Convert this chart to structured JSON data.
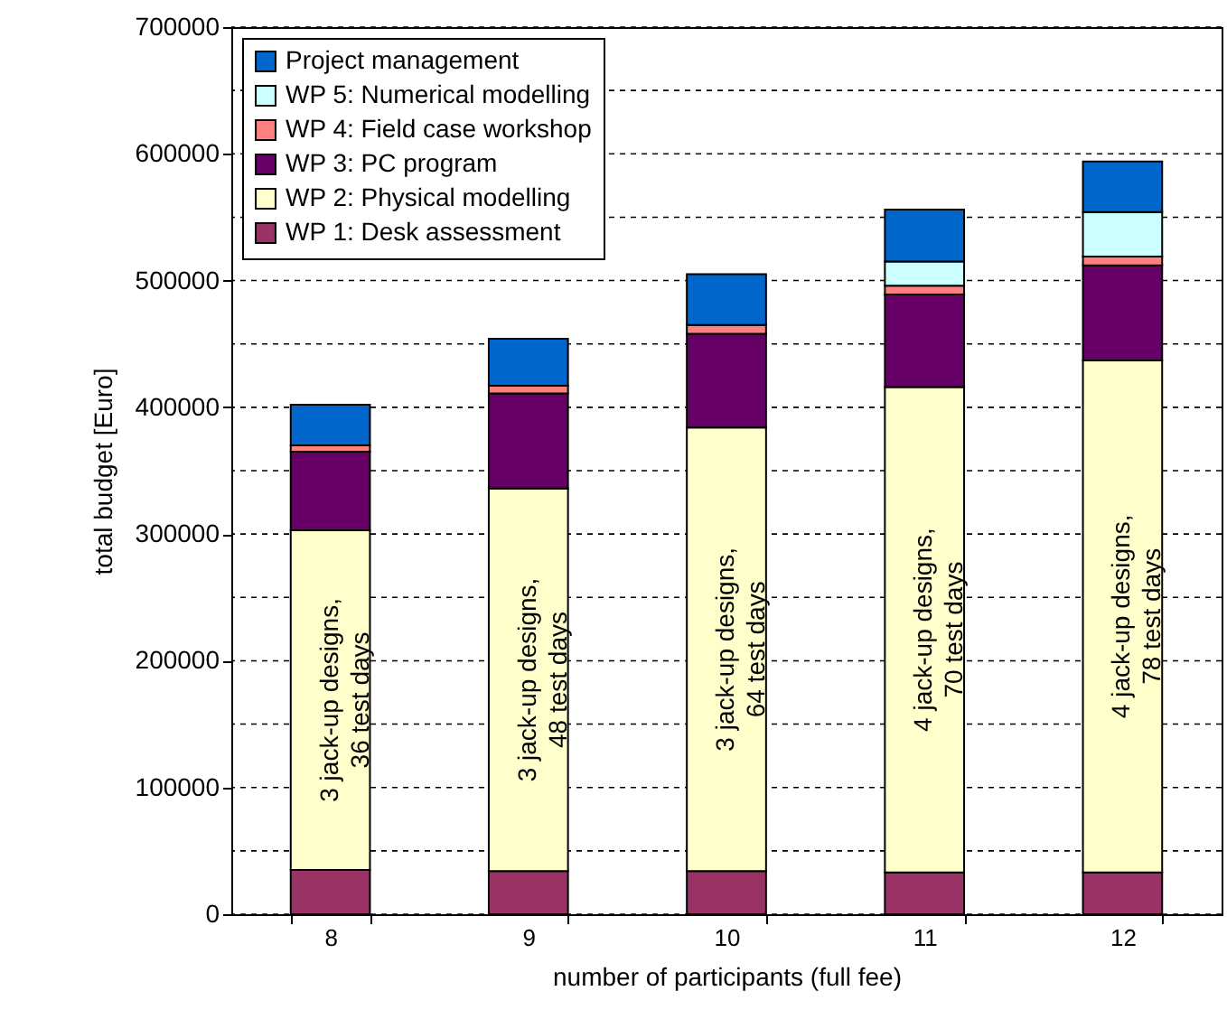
{
  "chart_data": {
    "type": "bar",
    "stacked": true,
    "xlabel": "number of participants (full fee)",
    "ylabel": "total budget [Euro]",
    "categories": [
      "8",
      "9",
      "10",
      "11",
      "12"
    ],
    "series": [
      {
        "name": "WP 1: Desk assessment",
        "color": "#993366",
        "values": [
          35000,
          34000,
          34000,
          33000,
          33000
        ]
      },
      {
        "name": "WP 2: Physical modelling",
        "color": "#ffffcc",
        "values": [
          268000,
          302000,
          350000,
          383000,
          404000
        ]
      },
      {
        "name": "WP 3: PC program",
        "color": "#660066",
        "values": [
          62000,
          75000,
          74000,
          73000,
          75000
        ]
      },
      {
        "name": "WP 4: Field case workshop",
        "color": "#ff8080",
        "values": [
          5000,
          6000,
          7000,
          7000,
          7000
        ]
      },
      {
        "name": "WP 5: Numerical modelling",
        "color": "#ccffff",
        "values": [
          null,
          null,
          null,
          19000,
          35000
        ]
      },
      {
        "name": "Project management",
        "color": "#0066cc",
        "values": [
          32000,
          37000,
          40000,
          41000,
          40000
        ]
      }
    ],
    "ylim": [
      0,
      700000
    ],
    "yticks": [
      0,
      {
        "value": 50000,
        "label": null
      },
      100000,
      {
        "value": 150000,
        "label": null
      },
      200000,
      {
        "value": 250000,
        "label": null
      },
      300000,
      {
        "value": 350000,
        "label": null
      },
      400000,
      {
        "value": 450000,
        "label": null
      },
      500000,
      {
        "value": 550000,
        "label": null
      },
      600000,
      {
        "value": 650000,
        "label": null
      },
      700000
    ],
    "grid": true,
    "line_style": "dashed",
    "legend": "top left",
    "annotations": [
      "3 jack-up designs,\n36 test days",
      "3 jack-up designs,\n48 test days",
      "3 jack-up designs,\n64 test days",
      "4 jack-up designs,\n70 test days",
      "4 jack-up designs,\n78 test days"
    ]
  }
}
